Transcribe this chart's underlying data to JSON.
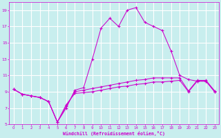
{
  "xlabel": "Windchill (Refroidissement éolien,°C)",
  "xlim": [
    -0.5,
    23.5
  ],
  "ylim": [
    5,
    20
  ],
  "yticks": [
    5,
    7,
    9,
    11,
    13,
    15,
    17,
    19
  ],
  "xticks": [
    0,
    1,
    2,
    3,
    4,
    5,
    6,
    7,
    8,
    9,
    10,
    11,
    12,
    13,
    14,
    15,
    16,
    17,
    18,
    19,
    20,
    21,
    22,
    23
  ],
  "background_color": "#c8eeee",
  "grid_color": "#ffffff",
  "line_color": "#cc00cc",
  "line_main": {
    "x": [
      0,
      1,
      2,
      3,
      4,
      5,
      6,
      7,
      8,
      9,
      10,
      11,
      12,
      13,
      14,
      15,
      16,
      17,
      18,
      19,
      20,
      21,
      22,
      23
    ],
    "y": [
      9.3,
      8.7,
      8.5,
      8.3,
      7.8,
      5.3,
      7.0,
      9.2,
      9.5,
      13.0,
      16.8,
      18.0,
      17.0,
      19.0,
      19.3,
      17.5,
      17.0,
      16.5,
      14.0,
      11.0,
      10.5,
      10.3,
      10.3,
      9.0
    ]
  },
  "line_flat1": {
    "x": [
      0,
      1,
      2,
      3,
      4,
      5,
      6,
      7,
      8,
      9,
      10,
      11,
      12,
      13,
      14,
      15,
      16,
      17,
      18,
      19,
      20,
      21,
      22,
      23
    ],
    "y": [
      9.3,
      8.7,
      8.5,
      8.3,
      7.8,
      5.3,
      7.4,
      8.8,
      8.9,
      9.0,
      9.2,
      9.4,
      9.6,
      9.7,
      9.9,
      10.0,
      10.2,
      10.2,
      10.3,
      10.4,
      9.0,
      10.3,
      10.3,
      9.0
    ]
  },
  "line_flat2": {
    "x": [
      0,
      1,
      2,
      3,
      4,
      5,
      6,
      7,
      8,
      9,
      10,
      11,
      12,
      13,
      14,
      15,
      16,
      17,
      18,
      19,
      20,
      21,
      22,
      23
    ],
    "y": [
      9.3,
      8.7,
      8.5,
      8.3,
      7.8,
      5.3,
      7.2,
      9.0,
      9.2,
      9.4,
      9.6,
      9.8,
      10.0,
      10.2,
      10.4,
      10.5,
      10.7,
      10.7,
      10.7,
      10.7,
      9.1,
      10.4,
      10.4,
      9.1
    ]
  }
}
